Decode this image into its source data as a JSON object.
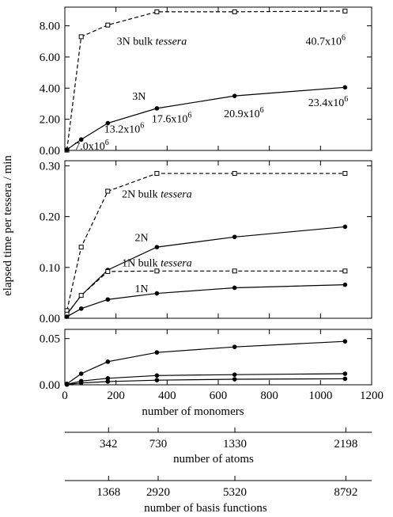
{
  "chart_data": {
    "type": "line",
    "ylabel": "elapsed time per tessera / min",
    "xlabel": "number of monomers",
    "x": [
      8,
      64,
      168,
      360,
      664,
      1096
    ],
    "xlim": [
      0,
      1200
    ],
    "xticks": [
      "0",
      "200",
      "400",
      "600",
      "800",
      "1000",
      "1200"
    ],
    "panels": [
      {
        "ylim": [
          0,
          9.2
        ],
        "yticks": [
          "0.00",
          "2.00",
          "4.00",
          "6.00",
          "8.00"
        ],
        "series": [
          {
            "name": "3N bulk tessera",
            "style": "dashed",
            "marker": "square-open",
            "values": [
              0.02,
              7.3,
              8.05,
              8.9,
              8.9,
              8.95
            ]
          },
          {
            "name": "3N",
            "style": "solid",
            "marker": "circle-filled",
            "values": [
              0.05,
              0.7,
              1.75,
              2.7,
              3.5,
              4.05
            ]
          }
        ],
        "annotations": [
          {
            "text": "3N bulk tessera",
            "x": 340,
            "y": 7.05
          },
          {
            "text": "40.7x10^6",
            "x": 1020,
            "y": 7.05
          },
          {
            "text": "3N",
            "x": 290,
            "y": 3.5
          },
          {
            "text": "7.0x10^6",
            "x": 105,
            "y": 0.3
          },
          {
            "text": "13.2x10^6",
            "x": 232,
            "y": 1.4
          },
          {
            "text": "17.6x10^6",
            "x": 418,
            "y": 2.05
          },
          {
            "text": "20.9x10^6",
            "x": 700,
            "y": 2.4
          },
          {
            "text": "23.4x10^6",
            "x": 1030,
            "y": 3.1
          }
        ]
      },
      {
        "ylim": [
          0,
          0.31
        ],
        "yticks": [
          "0.00",
          "0.10",
          "0.20",
          "0.30"
        ],
        "series": [
          {
            "name": "2N bulk tessera",
            "style": "dashed",
            "marker": "square-open",
            "values": [
              0.015,
              0.14,
              0.25,
              0.285,
              0.285,
              0.285
            ]
          },
          {
            "name": "2N",
            "style": "solid",
            "marker": "circle-filled",
            "values": [
              0.008,
              0.045,
              0.095,
              0.14,
              0.16,
              0.18
            ]
          },
          {
            "name": "1N bulk tessera",
            "style": "dashed",
            "marker": "square-open",
            "values": [
              0.008,
              0.045,
              0.092,
              0.093,
              0.093,
              0.093
            ]
          },
          {
            "name": "1N",
            "style": "solid",
            "marker": "circle-filled",
            "values": [
              0.003,
              0.019,
              0.037,
              0.049,
              0.06,
              0.066
            ]
          }
        ],
        "annotations": [
          {
            "text": "2N bulk tessera",
            "x": 360,
            "y": 0.245
          },
          {
            "text": "2N",
            "x": 300,
            "y": 0.16
          },
          {
            "text": "1N bulk tessera",
            "x": 360,
            "y": 0.11
          },
          {
            "text": "1N",
            "x": 300,
            "y": 0.059
          }
        ]
      },
      {
        "ylim": [
          0,
          0.06
        ],
        "yticks": [
          "0.00",
          "0.05"
        ],
        "series": [
          {
            "name": "",
            "style": "solid",
            "marker": "circle-filled",
            "values": [
              0.001,
              0.012,
              0.025,
              0.035,
              0.041,
              0.047
            ]
          },
          {
            "name": "",
            "style": "solid",
            "marker": "circle-filled",
            "values": [
              0.0005,
              0.004,
              0.007,
              0.01,
              0.011,
              0.012
            ]
          },
          {
            "name": "",
            "style": "solid",
            "marker": "circle-filled",
            "values": [
              0.0002,
              0.002,
              0.0035,
              0.005,
              0.006,
              0.0065
            ]
          }
        ]
      }
    ],
    "secondary_axes": [
      {
        "label": "number of atoms",
        "ticks": [
          "342",
          "730",
          "1330",
          "2198"
        ]
      },
      {
        "label": "number of basis functions",
        "ticks": [
          "1368",
          "2920",
          "5320",
          "8792"
        ]
      }
    ]
  }
}
